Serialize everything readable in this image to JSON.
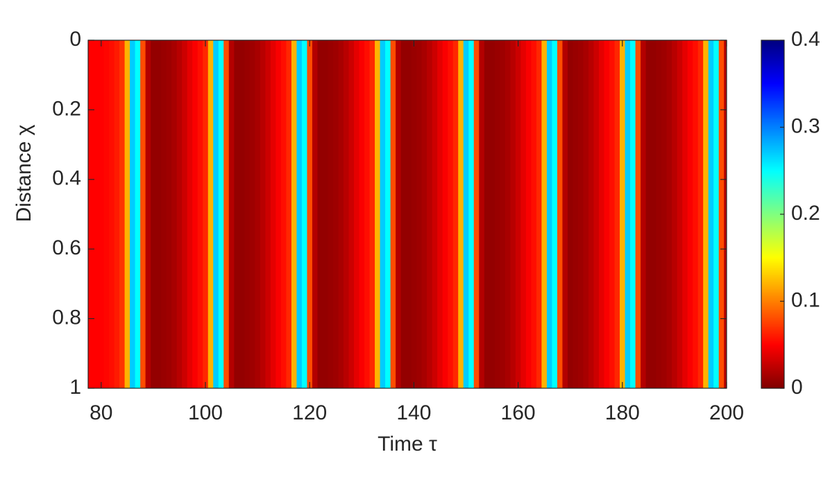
{
  "chart_data": {
    "type": "heatmap",
    "xlabel": "Time τ",
    "ylabel": "Distance χ",
    "x": [
      78,
      79,
      80,
      81,
      82,
      83,
      84,
      85,
      86,
      87,
      88,
      89,
      90,
      91,
      92,
      93,
      94,
      95,
      96,
      97,
      98,
      99,
      100,
      101,
      102,
      103,
      104,
      105,
      106,
      107,
      108,
      109,
      110,
      111,
      112,
      113,
      114,
      115,
      116,
      117,
      118,
      119,
      120,
      121,
      122,
      123,
      124,
      125,
      126,
      127,
      128,
      129,
      130,
      131,
      132,
      133,
      134,
      135,
      136,
      137,
      138,
      139,
      140,
      141,
      142,
      143,
      144,
      145,
      146,
      147,
      148,
      149,
      150,
      151,
      152,
      153,
      154,
      155,
      156,
      157,
      158,
      159,
      160,
      161,
      162,
      163,
      164,
      165,
      166,
      167,
      168,
      169,
      170,
      171,
      172,
      173,
      174,
      175,
      176,
      177,
      178,
      179,
      180,
      181,
      182,
      183,
      184,
      185,
      186,
      187,
      188,
      189,
      190,
      191,
      192,
      193,
      194,
      195,
      196,
      197,
      198,
      199,
      200
    ],
    "values": [
      0.05,
      0.05,
      0.05,
      0.052,
      0.055,
      0.06,
      0.07,
      0.12,
      0.27,
      0.25,
      0.08,
      0.02,
      0.008,
      0.008,
      0.01,
      0.012,
      0.016,
      0.022,
      0.03,
      0.04,
      0.048,
      0.055,
      0.065,
      0.12,
      0.27,
      0.25,
      0.08,
      0.02,
      0.008,
      0.008,
      0.01,
      0.012,
      0.016,
      0.022,
      0.03,
      0.04,
      0.048,
      0.055,
      0.065,
      0.12,
      0.27,
      0.25,
      0.08,
      0.02,
      0.008,
      0.008,
      0.01,
      0.012,
      0.016,
      0.022,
      0.03,
      0.04,
      0.048,
      0.055,
      0.065,
      0.12,
      0.27,
      0.25,
      0.08,
      0.02,
      0.008,
      0.008,
      0.01,
      0.012,
      0.016,
      0.022,
      0.03,
      0.04,
      0.048,
      0.055,
      0.065,
      0.12,
      0.27,
      0.25,
      0.08,
      0.02,
      0.008,
      0.008,
      0.01,
      0.012,
      0.016,
      0.022,
      0.03,
      0.04,
      0.048,
      0.055,
      0.065,
      0.12,
      0.27,
      0.25,
      0.08,
      0.02,
      0.008,
      0.01,
      0.012,
      0.016,
      0.022,
      0.03,
      0.04,
      0.048,
      0.055,
      0.065,
      0.12,
      0.27,
      0.25,
      0.08,
      0.02,
      0.008,
      0.008,
      0.01,
      0.012,
      0.016,
      0.022,
      0.03,
      0.04,
      0.048,
      0.055,
      0.065,
      0.12,
      0.27,
      0.25,
      0.08,
      0.02
    ],
    "xlim": [
      77.5,
      200
    ],
    "xticks": [
      80,
      100,
      120,
      140,
      160,
      180,
      200
    ],
    "ylim": [
      0,
      1
    ],
    "yticks": [
      0,
      0.2,
      0.4,
      0.6,
      0.8,
      1
    ],
    "y_reversed": true,
    "colormap": "jet",
    "colormap_reversed": true,
    "clim": [
      0,
      0.4
    ],
    "cticks": [
      0,
      0.1,
      0.2,
      0.3,
      0.4
    ]
  }
}
